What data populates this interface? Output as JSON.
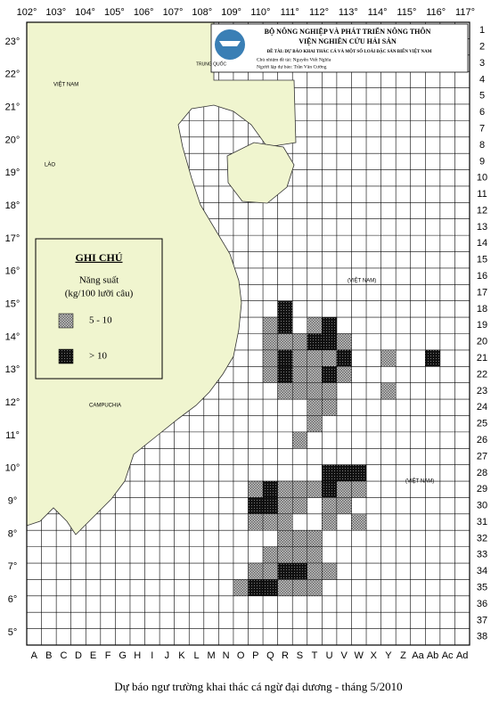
{
  "header": {
    "ministry": "BỘ NÔNG NGHIỆP VÀ PHÁT TRIỂN NÔNG THÔN",
    "institute": "VIỆN NGHIÊN CỨU HẢI SẢN",
    "project": "ĐỀ TÀI: DỰ BÁO KHAI THÁC CÁ VÀ MỘT SỐ LOÀI ĐẶC SẢN BIỂN VIỆT NAM",
    "leader": "Chủ nhiệm đề tài: Nguyễn Viết Nghĩa",
    "forecaster": "Người lập dự báo: Trần Văn Cường"
  },
  "longitudes": [
    "102°",
    "103°",
    "104°",
    "105°",
    "106°",
    "107°",
    "108°",
    "109°",
    "110°",
    "111°",
    "112°",
    "113°",
    "114°",
    "115°",
    "116°",
    "117°"
  ],
  "latitudes": [
    "23°",
    "22°",
    "21°",
    "20°",
    "19°",
    "18°",
    "17°",
    "16°",
    "15°",
    "14°",
    "13°",
    "12°",
    "11°",
    "10°",
    "9°",
    "8°",
    "7°",
    "6°",
    "5°"
  ],
  "rows": [
    "1",
    "2",
    "3",
    "4",
    "5",
    "6",
    "7",
    "8",
    "9",
    "10",
    "11",
    "12",
    "13",
    "14",
    "15",
    "16",
    "17",
    "18",
    "19",
    "20",
    "21",
    "22",
    "23",
    "24",
    "25",
    "26",
    "27",
    "28",
    "29",
    "30",
    "31",
    "32",
    "33",
    "34",
    "35",
    "36",
    "37",
    "38"
  ],
  "columns": [
    "A",
    "B",
    "C",
    "D",
    "E",
    "F",
    "G",
    "H",
    "I",
    "J",
    "K",
    "L",
    "M",
    "N",
    "O",
    "P",
    "Q",
    "R",
    "S",
    "T",
    "U",
    "V",
    "W",
    "X",
    "Y",
    "Z",
    "Aa",
    "Ab",
    "Ac",
    "Ad"
  ],
  "places": [
    "TRUNG QUỐC",
    "VIỆT NAM",
    "LÀO",
    "CAMPUCHIA",
    "(VIỆT NAM)",
    "(VIỆT NAM)"
  ],
  "legend": {
    "title": "GHI CHÚ",
    "subtitle": "Năng suất",
    "unit": "(kg/100 lưỡi câu)",
    "items": [
      "5 - 10",
      "> 10"
    ]
  },
  "caption": "Dự báo ngư trường khai thác cá ngừ đại dương - tháng 5/2010"
}
